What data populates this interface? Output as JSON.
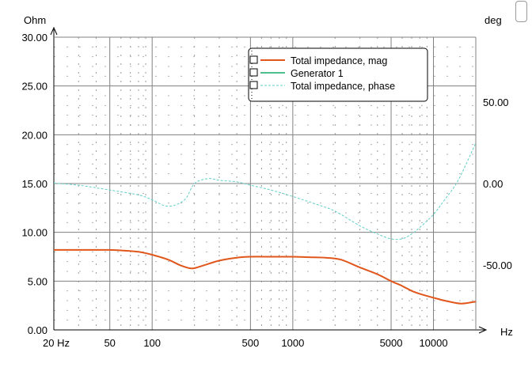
{
  "chart_data": {
    "type": "line",
    "ylabel": "Ohm",
    "y2label": "deg",
    "xunit": "Hz",
    "xscale": "log",
    "xlim": [
      20,
      20000
    ],
    "ylim": [
      0,
      30
    ],
    "y2lim": [
      -90,
      90
    ],
    "grid": true,
    "legend_position": "top-right",
    "x_ticks": [
      {
        "value": 20,
        "label": "20 Hz"
      },
      {
        "value": 50,
        "label": "50"
      },
      {
        "value": 100,
        "label": "100"
      },
      {
        "value": 500,
        "label": "500"
      },
      {
        "value": 1000,
        "label": "1000"
      },
      {
        "value": 5000,
        "label": "5000"
      },
      {
        "value": 10000,
        "label": "10000"
      }
    ],
    "y_ticks": [
      {
        "value": 0,
        "label": "0.00"
      },
      {
        "value": 5,
        "label": "5.00"
      },
      {
        "value": 10,
        "label": "10.00"
      },
      {
        "value": 15,
        "label": "15.00"
      },
      {
        "value": 20,
        "label": "20.00"
      },
      {
        "value": 25,
        "label": "25.00"
      },
      {
        "value": 30,
        "label": "30.00"
      }
    ],
    "y2_ticks": [
      {
        "value": 50,
        "label": "50.00"
      },
      {
        "value": 0,
        "label": "0.00"
      },
      {
        "value": -50,
        "label": "-50.00"
      }
    ],
    "series": [
      {
        "name": "Total impedance, mag",
        "axis": "left",
        "color": "#e0561b",
        "style": "solid",
        "x": [
          20,
          30,
          40,
          50,
          60,
          80,
          100,
          130,
          160,
          190,
          220,
          300,
          400,
          500,
          700,
          1000,
          1300,
          1700,
          2200,
          3000,
          4000,
          5000,
          6000,
          7000,
          8000,
          10000,
          12000,
          14000,
          16000,
          20000
        ],
        "y": [
          8.2,
          8.2,
          8.2,
          8.2,
          8.15,
          8.0,
          7.7,
          7.2,
          6.6,
          6.3,
          6.5,
          7.1,
          7.4,
          7.5,
          7.5,
          7.5,
          7.45,
          7.4,
          7.2,
          6.4,
          5.7,
          5.0,
          4.5,
          4.0,
          3.7,
          3.3,
          3.0,
          2.8,
          2.7,
          2.9
        ]
      },
      {
        "name": "Generator 1",
        "axis": "left",
        "color": "#4cbf8a",
        "style": "solid",
        "x": [],
        "y": []
      },
      {
        "name": "Total impedance, phase",
        "axis": "right",
        "color": "#5fcfc8",
        "style": "dotted",
        "x": [
          20,
          30,
          50,
          80,
          100,
          130,
          170,
          200,
          250,
          300,
          400,
          500,
          700,
          1000,
          1500,
          2000,
          3000,
          4000,
          5000,
          6000,
          7000,
          8000,
          10000,
          12000,
          15000,
          20000
        ],
        "y": [
          0.2,
          -1,
          -4,
          -7,
          -10,
          -14,
          -10,
          0,
          3,
          2,
          1,
          -1,
          -4,
          -8,
          -13,
          -17,
          -26,
          -31,
          -34,
          -34,
          -31,
          -27,
          -19,
          -10,
          2,
          25
        ]
      }
    ]
  }
}
